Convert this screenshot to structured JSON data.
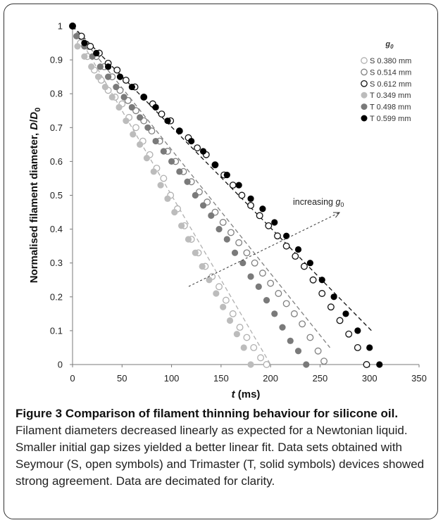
{
  "caption": {
    "title": "Figure 3 Comparison of filament thinning behaviour for silicone oil.",
    "body": "Filament diameters decreased linearly as expected for a Newtonian liquid. Smaller initial gap sizes yielded a better linear fit. Data sets obtained with Seymour (S, open symbols) and Trimaster (T, solid symbols) devices showed strong agreement. Data are decimated for clarity."
  },
  "chart_data": {
    "type": "scatter",
    "xlabel": "t (ms)",
    "ylabel": "Normalised filament diameter, D/D0",
    "xlim": [
      0,
      350
    ],
    "ylim": [
      0,
      1
    ],
    "xticks": [
      0,
      50,
      100,
      150,
      200,
      250,
      300,
      350
    ],
    "yticks": [
      0,
      0.1,
      0.2,
      0.3,
      0.4,
      0.5,
      0.6,
      0.7,
      0.8,
      0.9,
      1
    ],
    "grid": false,
    "legend": {
      "title": "g0",
      "placement": "top-right"
    },
    "annotation": {
      "text": "increasing g0"
    },
    "series": [
      {
        "name": "S 0.380 mm",
        "marker": "open",
        "color": "#b0b0b0",
        "x": [
          0,
          8,
          15,
          22,
          29,
          36,
          43,
          50,
          57,
          64,
          71,
          78,
          85,
          92,
          99,
          106,
          113,
          120,
          127,
          134,
          141,
          148,
          155,
          162,
          169,
          176,
          183,
          190,
          196
        ],
        "y": [
          1,
          0.95,
          0.91,
          0.87,
          0.84,
          0.81,
          0.79,
          0.77,
          0.73,
          0.7,
          0.66,
          0.62,
          0.58,
          0.55,
          0.5,
          0.46,
          0.41,
          0.37,
          0.33,
          0.29,
          0.26,
          0.23,
          0.19,
          0.15,
          0.11,
          0.08,
          0.05,
          0.02,
          0
        ]
      },
      {
        "name": "S 0.514 mm",
        "marker": "open",
        "color": "#808080",
        "x": [
          0,
          8,
          16,
          24,
          32,
          40,
          48,
          56,
          64,
          72,
          80,
          88,
          96,
          104,
          112,
          120,
          128,
          136,
          144,
          152,
          160,
          168,
          176,
          184,
          192,
          200,
          208,
          216,
          224,
          232,
          240,
          248,
          254
        ],
        "y": [
          1,
          0.97,
          0.94,
          0.91,
          0.88,
          0.85,
          0.81,
          0.78,
          0.75,
          0.72,
          0.69,
          0.66,
          0.63,
          0.6,
          0.57,
          0.54,
          0.51,
          0.48,
          0.45,
          0.42,
          0.39,
          0.36,
          0.33,
          0.3,
          0.27,
          0.24,
          0.21,
          0.18,
          0.15,
          0.12,
          0.08,
          0.04,
          0.01
        ]
      },
      {
        "name": "S 0.612 mm",
        "marker": "open",
        "color": "#111111",
        "x": [
          0,
          9,
          18,
          27,
          36,
          45,
          54,
          63,
          72,
          81,
          90,
          99,
          108,
          117,
          126,
          135,
          144,
          153,
          162,
          171,
          180,
          189,
          198,
          207,
          216,
          225,
          234,
          243,
          252,
          261,
          270,
          279,
          288,
          297
        ],
        "y": [
          1,
          0.97,
          0.94,
          0.92,
          0.89,
          0.87,
          0.84,
          0.82,
          0.79,
          0.77,
          0.74,
          0.72,
          0.69,
          0.67,
          0.64,
          0.62,
          0.59,
          0.56,
          0.53,
          0.5,
          0.47,
          0.44,
          0.41,
          0.38,
          0.35,
          0.32,
          0.29,
          0.25,
          0.21,
          0.17,
          0.13,
          0.09,
          0.05,
          0
        ]
      },
      {
        "name": "T 0.349 mm",
        "marker": "solid",
        "color": "#bcbcbc",
        "x": [
          5,
          12,
          19,
          26,
          33,
          40,
          47,
          54,
          61,
          68,
          75,
          82,
          89,
          96,
          103,
          110,
          117,
          124,
          131,
          138,
          145,
          152,
          159,
          166,
          173,
          180
        ],
        "y": [
          0.94,
          0.91,
          0.88,
          0.85,
          0.82,
          0.79,
          0.76,
          0.72,
          0.68,
          0.65,
          0.61,
          0.57,
          0.53,
          0.49,
          0.45,
          0.41,
          0.37,
          0.33,
          0.29,
          0.25,
          0.21,
          0.17,
          0.13,
          0.09,
          0.05,
          0
        ]
      },
      {
        "name": "T 0.498 mm",
        "marker": "solid",
        "color": "#7a7a7a",
        "x": [
          4,
          12,
          20,
          28,
          36,
          44,
          52,
          60,
          68,
          76,
          84,
          92,
          100,
          108,
          116,
          124,
          132,
          140,
          148,
          156,
          164,
          172,
          180,
          188,
          196,
          204,
          212,
          220,
          228,
          236
        ],
        "y": [
          0.97,
          0.94,
          0.91,
          0.88,
          0.85,
          0.82,
          0.79,
          0.76,
          0.73,
          0.7,
          0.66,
          0.63,
          0.6,
          0.57,
          0.54,
          0.5,
          0.47,
          0.44,
          0.4,
          0.37,
          0.33,
          0.3,
          0.26,
          0.23,
          0.19,
          0.15,
          0.11,
          0.07,
          0.04,
          0
        ]
      },
      {
        "name": "T 0.599 mm",
        "marker": "solid",
        "color": "#000000",
        "x": [
          0,
          12,
          24,
          36,
          48,
          60,
          72,
          84,
          96,
          108,
          120,
          132,
          144,
          156,
          168,
          180,
          192,
          204,
          216,
          228,
          240,
          252,
          264,
          276,
          288,
          300,
          310
        ],
        "y": [
          1,
          0.95,
          0.92,
          0.88,
          0.85,
          0.82,
          0.79,
          0.76,
          0.72,
          0.69,
          0.66,
          0.63,
          0.59,
          0.56,
          0.53,
          0.49,
          0.46,
          0.42,
          0.38,
          0.34,
          0.3,
          0.25,
          0.2,
          0.15,
          0.1,
          0.05,
          0
        ]
      }
    ],
    "fit_lines": [
      {
        "color": "#b0b0b0",
        "x": [
          0,
          200
        ],
        "y": [
          1,
          0
        ]
      },
      {
        "color": "#808080",
        "x": [
          0,
          260
        ],
        "y": [
          1,
          0.05
        ]
      },
      {
        "color": "#111111",
        "x": [
          0,
          302
        ],
        "y": [
          1,
          0.1
        ]
      }
    ]
  }
}
